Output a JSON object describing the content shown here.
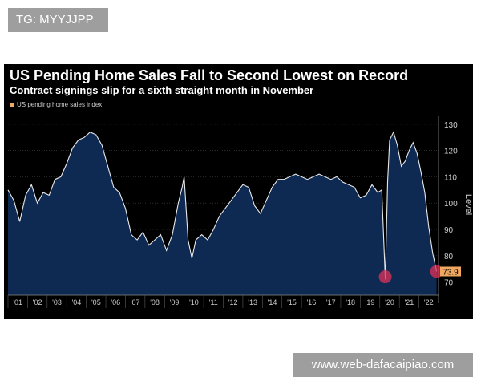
{
  "tag": {
    "label": "TG: MYYJJPP"
  },
  "watermark": {
    "label": "www.web-dafacaipiao.com"
  },
  "colors": {
    "background": "#000000",
    "area_fill": "#0e2a52",
    "line": "#e8e8e8",
    "highlight": "#e0305a",
    "last_value_badge": "#f0a860"
  },
  "chart_data": {
    "type": "area",
    "title": "US Pending Home Sales Fall to Second Lowest on Record",
    "subtitle": "Contract signings slip for a sixth straight month in November",
    "legend": [
      "US pending home sales index"
    ],
    "ylabel": "Level",
    "ylim": [
      65,
      133
    ],
    "xlim": [
      2001.0,
      2023.0
    ],
    "yticks": [
      70,
      80,
      90,
      100,
      110,
      120,
      130
    ],
    "xticks": [
      "'01",
      "'02",
      "'03",
      "'04",
      "'05",
      "'06",
      "'07",
      "'08",
      "'09",
      "'10",
      "'11",
      "'12",
      "'13",
      "'14",
      "'15",
      "'16",
      "'17",
      "'18",
      "'19",
      "'20",
      "'21",
      "'22"
    ],
    "last_value_label": "73.9",
    "highlights": [
      {
        "x": 2020.28,
        "y": 72
      },
      {
        "x": 2022.9,
        "y": 74
      }
    ],
    "series": [
      {
        "name": "US pending home sales index",
        "x": [
          2001.0,
          2001.3,
          2001.6,
          2001.9,
          2002.2,
          2002.5,
          2002.8,
          2003.1,
          2003.4,
          2003.7,
          2004.0,
          2004.3,
          2004.6,
          2004.9,
          2005.2,
          2005.5,
          2005.8,
          2006.1,
          2006.4,
          2006.7,
          2007.0,
          2007.3,
          2007.6,
          2007.9,
          2008.2,
          2008.5,
          2008.8,
          2009.1,
          2009.4,
          2009.7,
          2009.9,
          2010.0,
          2010.2,
          2010.4,
          2010.6,
          2010.9,
          2011.2,
          2011.5,
          2011.8,
          2012.1,
          2012.4,
          2012.7,
          2013.0,
          2013.3,
          2013.6,
          2013.9,
          2014.2,
          2014.5,
          2014.8,
          2015.1,
          2015.4,
          2015.7,
          2016.0,
          2016.3,
          2016.6,
          2016.9,
          2017.2,
          2017.5,
          2017.8,
          2018.1,
          2018.4,
          2018.7,
          2019.0,
          2019.3,
          2019.6,
          2019.9,
          2020.1,
          2020.28,
          2020.4,
          2020.5,
          2020.7,
          2020.9,
          2021.1,
          2021.3,
          2021.5,
          2021.7,
          2021.9,
          2022.1,
          2022.3,
          2022.5,
          2022.7,
          2022.9
        ],
        "values": [
          105,
          101,
          93,
          103,
          107,
          100,
          104,
          103,
          109,
          110,
          115,
          121,
          124,
          125,
          127,
          126,
          122,
          114,
          106,
          104,
          98,
          88,
          86,
          89,
          84,
          86,
          88,
          82,
          88,
          100,
          106,
          110,
          86,
          79,
          86,
          88,
          86,
          90,
          95,
          98,
          101,
          104,
          107,
          106,
          99,
          96,
          101,
          106,
          109,
          109,
          110,
          111,
          110,
          109,
          110,
          111,
          110,
          109,
          110,
          108,
          107,
          106,
          102,
          103,
          107,
          104,
          105,
          71,
          108,
          124,
          127,
          122,
          114,
          116,
          120,
          123,
          119,
          112,
          104,
          91,
          81,
          74
        ]
      }
    ]
  }
}
